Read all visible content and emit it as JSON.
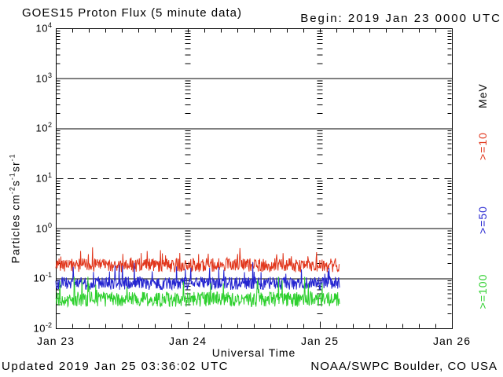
{
  "header": {
    "title": "GOES15 Proton Flux (5 minute data)",
    "begin_label": "Begin: 2019 Jan 23 0000 UTC"
  },
  "footer": {
    "updated": "Updated 2019 Jan 25 03:36:02 UTC",
    "source": "NOAA/SWPC Boulder, CO USA"
  },
  "colors": {
    "axis": "#000000",
    "red_series": "#e1361c",
    "blue_series": "#2424d0",
    "green_series": "#2ed02e",
    "background": "#ffffff"
  },
  "chart_data": {
    "type": "line",
    "title": "GOES15 Proton Flux (5 minute data)",
    "begin_time": "2019 Jan 23 0000 UTC",
    "updated_time": "2019 Jan 25 03:36:02 UTC",
    "xlabel": "Universal Time",
    "ylabel_parts": [
      {
        "t": "Particles cm"
      },
      {
        "sup": "-2"
      },
      {
        "t": "s"
      },
      {
        "sup": "-1"
      },
      {
        "t": "sr"
      },
      {
        "sup": "-1"
      }
    ],
    "x_ticks": [
      "Jan 23",
      "Jan 24",
      "Jan 25",
      "Jan 26"
    ],
    "x_span_days": 3,
    "hour_tick_interval_h": 3,
    "y_scale": "log10",
    "ylim_log": [
      -2,
      4
    ],
    "y_ticks": [
      {
        "exp": "4",
        "log": 4
      },
      {
        "exp": "3",
        "log": 3
      },
      {
        "exp": "2",
        "log": 2
      },
      {
        "exp": "1",
        "log": 1
      },
      {
        "exp": "0",
        "log": 0
      },
      {
        "exp": "-1",
        "log": -1
      },
      {
        "exp": "-2",
        "log": -2
      }
    ],
    "gridlines": {
      "solid_log": [
        3,
        2,
        0,
        -1
      ],
      "dashed_log": [
        1
      ],
      "day_tick_column_days": [
        1,
        2
      ],
      "minor_tick_multiples": [
        2,
        3,
        4,
        5,
        6,
        7,
        8,
        9
      ]
    },
    "legend": {
      "unit_label": "MeV",
      "entries": [
        {
          "label": ">=10",
          "color": "#e1361c",
          "y_center": 187
        },
        {
          "label": ">=50",
          "color": "#2424d0",
          "y_center": 281
        },
        {
          "label": ">=100",
          "color": "#2ed02e",
          "y_center": 372
        }
      ],
      "unit_y_center": 123,
      "position": "right-rotated"
    },
    "series": [
      {
        "name": "p_ge10",
        "label": ">=10 MeV",
        "color": "#e1361c",
        "cadence_min": 5,
        "start": "Jan 23 0000 UTC",
        "end": "Jan 25 ~0336 UTC",
        "duration_days": 2.149,
        "approx_flux": {
          "median": 0.18,
          "min": 0.11,
          "max": 0.42
        },
        "gen": {
          "seed": 1012,
          "base_log": -0.74,
          "jitter_log": 0.14,
          "spike_prob": 0.05,
          "spike_amp_log": 0.26,
          "floor_log": -0.97,
          "cap_log": -0.38
        }
      },
      {
        "name": "p_ge50",
        "label": ">=50 MeV",
        "color": "#2424d0",
        "cadence_min": 5,
        "start": "Jan 23 0000 UTC",
        "end": "Jan 25 ~0336 UTC",
        "duration_days": 2.149,
        "approx_flux": {
          "median": 0.08,
          "min": 0.053,
          "max": 0.26
        },
        "gen": {
          "seed": 2077,
          "base_log": -1.1,
          "jitter_log": 0.13,
          "spike_prob": 0.05,
          "spike_amp_log": 0.5,
          "floor_log": -1.28,
          "cap_log": -0.58
        }
      },
      {
        "name": "p_ge100",
        "label": ">=100 MeV",
        "color": "#2ed02e",
        "cadence_min": 5,
        "start": "Jan 23 0000 UTC",
        "end": "Jan 25 ~0336 UTC",
        "duration_days": 2.149,
        "approx_flux": {
          "median": 0.038,
          "min": 0.026,
          "max": 0.105
        },
        "gen": {
          "seed": 3141,
          "base_log": -1.42,
          "jitter_log": 0.15,
          "spike_prob": 0.06,
          "spike_amp_log": 0.45,
          "floor_log": -1.58,
          "cap_log": -0.97
        }
      }
    ]
  }
}
